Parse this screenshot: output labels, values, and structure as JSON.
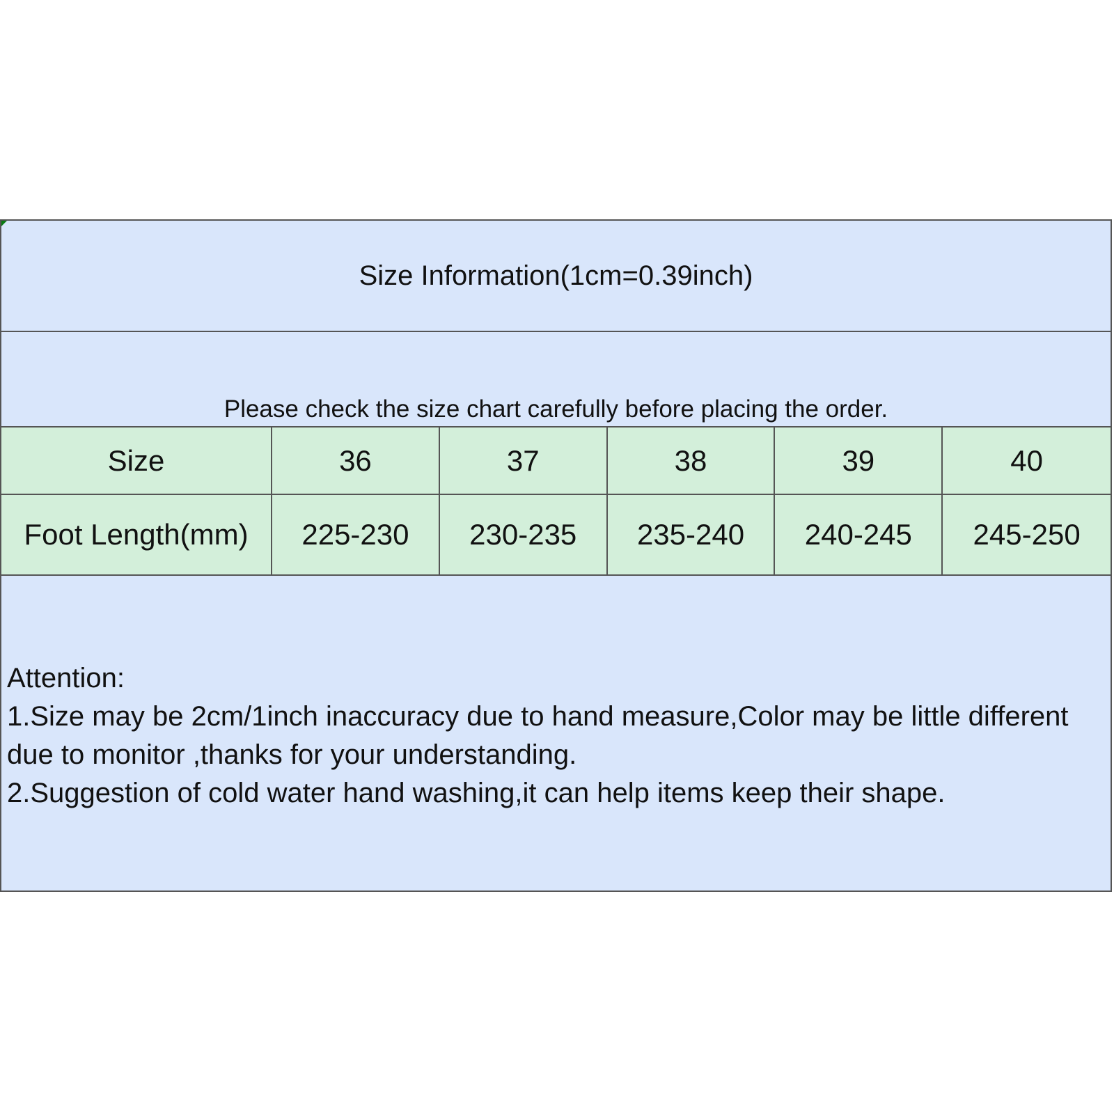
{
  "title": "Size Information(1cm=0.39inch)",
  "subtitle": "Please check the size chart carefully before placing the order.",
  "table": {
    "header": [
      "Size",
      "36",
      "37",
      "38",
      "39",
      "40"
    ],
    "rows": [
      [
        "Foot Length(mm)",
        "225-230",
        "230-235",
        "235-240",
        "240-245",
        "245-250"
      ]
    ]
  },
  "notes": [
    "Attention:",
    "1.Size may be 2cm/1inch inaccuracy due to hand measure,Color may be little different due to monitor ,thanks for your understanding.",
    "2.Suggestion of cold water hand washing,it can help items keep their shape."
  ],
  "colors": {
    "background": "#d9e6fb",
    "table_rows": "#d3efda",
    "border": "#555555"
  }
}
